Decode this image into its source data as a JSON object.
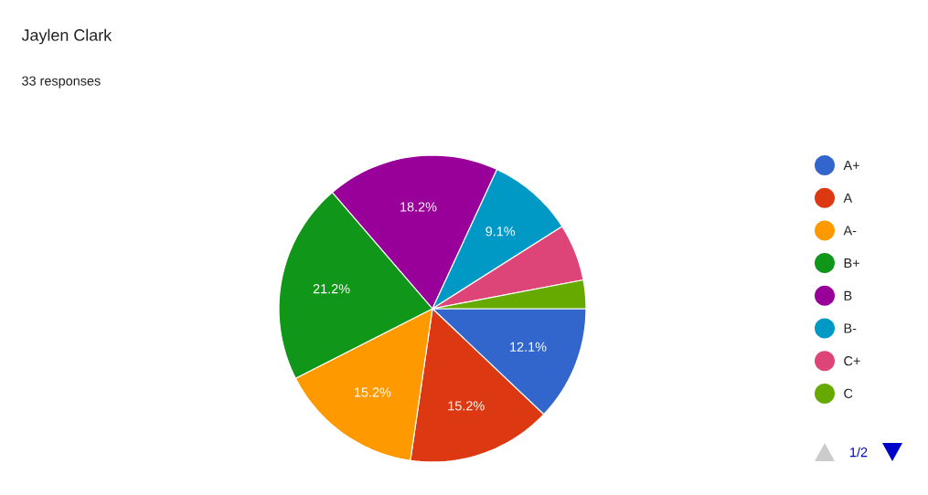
{
  "chart_data": {
    "type": "pie",
    "title": "Jaylen Clark",
    "subtitle": "33 responses",
    "categories": [
      "A+",
      "A",
      "A-",
      "B+",
      "B",
      "B-",
      "C+",
      "C"
    ],
    "values": [
      12.1,
      15.2,
      15.2,
      21.2,
      18.2,
      9.1,
      6.0,
      3.0
    ],
    "value_labels": [
      "12.1%",
      "15.2%",
      "15.2%",
      "21.2%",
      "18.2%",
      "9.1%",
      null,
      null
    ],
    "colors": [
      "#3366cc",
      "#dc3912",
      "#ff9900",
      "#109618",
      "#990099",
      "#0099c6",
      "#dd4477",
      "#66aa00"
    ],
    "legend": "right",
    "annotations": [
      "1/2"
    ]
  }
}
